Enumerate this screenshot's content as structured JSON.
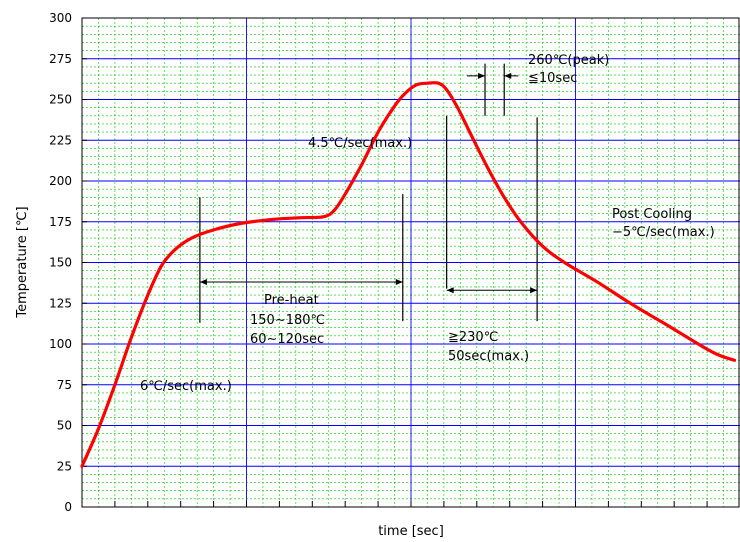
{
  "chart_data": {
    "type": "line",
    "title": "",
    "xlabel": "time [sec]",
    "ylabel": "Temperature [℃]",
    "ylim": [
      0,
      300
    ],
    "yticks": [
      0,
      25,
      50,
      75,
      100,
      125,
      150,
      175,
      200,
      225,
      250,
      275,
      300
    ],
    "grid": true,
    "colors": {
      "curve": "#ff0000",
      "major_grid": "#0000ff",
      "minor_grid": "#00cc00"
    },
    "series": [
      {
        "values": [
          [
            0,
            25
          ],
          [
            6,
            48
          ],
          [
            12,
            75
          ],
          [
            18,
            104
          ],
          [
            24,
            130
          ],
          [
            29,
            148
          ],
          [
            34,
            158
          ],
          [
            40,
            165
          ],
          [
            48,
            170
          ],
          [
            58,
            174
          ],
          [
            70,
            176.5
          ],
          [
            80,
            177.5
          ],
          [
            88,
            178
          ],
          [
            92,
            182
          ],
          [
            96,
            192
          ],
          [
            102,
            210
          ],
          [
            108,
            230
          ],
          [
            114,
            246
          ],
          [
            118,
            254
          ],
          [
            122,
            259
          ],
          [
            126,
            260
          ],
          [
            130,
            260
          ],
          [
            133,
            256
          ],
          [
            137,
            245
          ],
          [
            142,
            228
          ],
          [
            148,
            208
          ],
          [
            154,
            190
          ],
          [
            160,
            175
          ],
          [
            168,
            160
          ],
          [
            176,
            150
          ],
          [
            188,
            138
          ],
          [
            200,
            125
          ],
          [
            215,
            110
          ],
          [
            230,
            95
          ],
          [
            238,
            90
          ]
        ]
      }
    ],
    "annotations": {
      "peak": [
        "260℃(peak)",
        "≦10sec"
      ],
      "ramp_up_2": "4.5℃/sec(max.)",
      "post_cooling": [
        "Post Cooling",
        "−5℃/sec(max.)"
      ],
      "preheat": [
        "Pre-heat",
        "150∼180℃",
        "60∼120sec"
      ],
      "above_230": [
        "≧230℃",
        "50sec(max.)"
      ],
      "ramp_up_1": "6℃/sec(max.)"
    }
  }
}
